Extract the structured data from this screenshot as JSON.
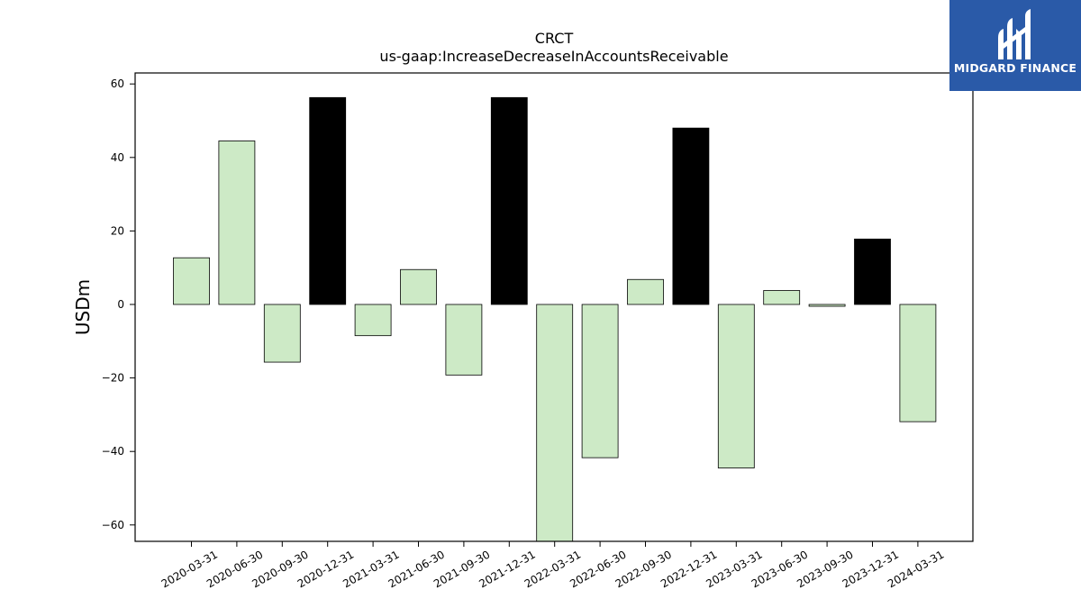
{
  "chart_data": {
    "type": "bar",
    "title": "CRCT",
    "subtitle": "us-gaap:IncreaseDecreaseInAccountsReceivable",
    "ylabel": "USDm",
    "ylim": [
      -64,
      63
    ],
    "yticks": [
      60,
      40,
      20,
      0,
      -20,
      -40,
      -60
    ],
    "ytick_labels": [
      "60",
      "40",
      "20",
      "0",
      "−20",
      "−40",
      "−60"
    ],
    "categories": [
      "2020-03-31",
      "2020-06-30",
      "2020-09-30",
      "2020-12-31",
      "2021-03-31",
      "2021-06-30",
      "2021-09-30",
      "2021-12-31",
      "2022-03-31",
      "2022-06-30",
      "2022-09-30",
      "2022-12-31",
      "2023-03-31",
      "2023-06-30",
      "2023-09-30",
      "2023-12-31",
      "2024-03-31"
    ],
    "values": [
      12.7,
      44.5,
      -15.7,
      56.3,
      -8.5,
      9.5,
      -19.2,
      56.3,
      -64.5,
      -41.7,
      6.8,
      48.0,
      -44.5,
      3.8,
      -0.5,
      17.8,
      -31.9
    ],
    "highlight": [
      false,
      false,
      false,
      true,
      false,
      false,
      false,
      true,
      false,
      false,
      false,
      true,
      false,
      false,
      false,
      true,
      false
    ],
    "colors": {
      "normal": "#cdeac6",
      "highlight": "#000000",
      "edge": "#000000"
    },
    "grid": false
  },
  "logo": {
    "text": "MIDGARD FINANCE",
    "background": "#2a5aa8"
  }
}
